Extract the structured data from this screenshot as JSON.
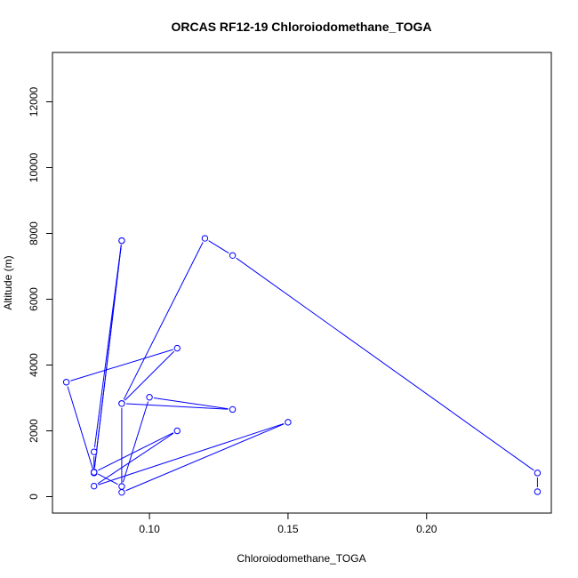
{
  "chart_data": {
    "type": "line",
    "title": "ORCAS RF12-19 Chloroiodomethane_TOGA",
    "xlabel": "Chloroiodomethane_TOGA",
    "ylabel": "Altitude (m)",
    "xlim": [
      0.065,
      0.245
    ],
    "ylim": [
      -500,
      13500
    ],
    "xticks": [
      0.1,
      0.15,
      0.2
    ],
    "xtick_labels": [
      "0.10",
      "0.15",
      "0.20"
    ],
    "yticks": [
      0,
      2000,
      4000,
      6000,
      8000,
      10000,
      12000
    ],
    "ytick_labels": [
      "0",
      "2000",
      "4000",
      "6000",
      "8000",
      "10000",
      "12000"
    ],
    "grid": false,
    "colors": {
      "series": "#0000ff"
    },
    "x": [
      0.24,
      0.24,
      0.13,
      0.12,
      0.09,
      0.13,
      0.1,
      0.09,
      0.08,
      0.09,
      0.08,
      0.08,
      0.07,
      0.11,
      0.09,
      0.09,
      0.15,
      0.08,
      0.11,
      0.08,
      0.09
    ],
    "y": [
      150,
      720,
      7330,
      7850,
      2830,
      2650,
      3020,
      310,
      750,
      7780,
      1360,
      720,
      3480,
      4510,
      2830,
      130,
      2260,
      320,
      2000,
      740,
      7780
    ]
  }
}
